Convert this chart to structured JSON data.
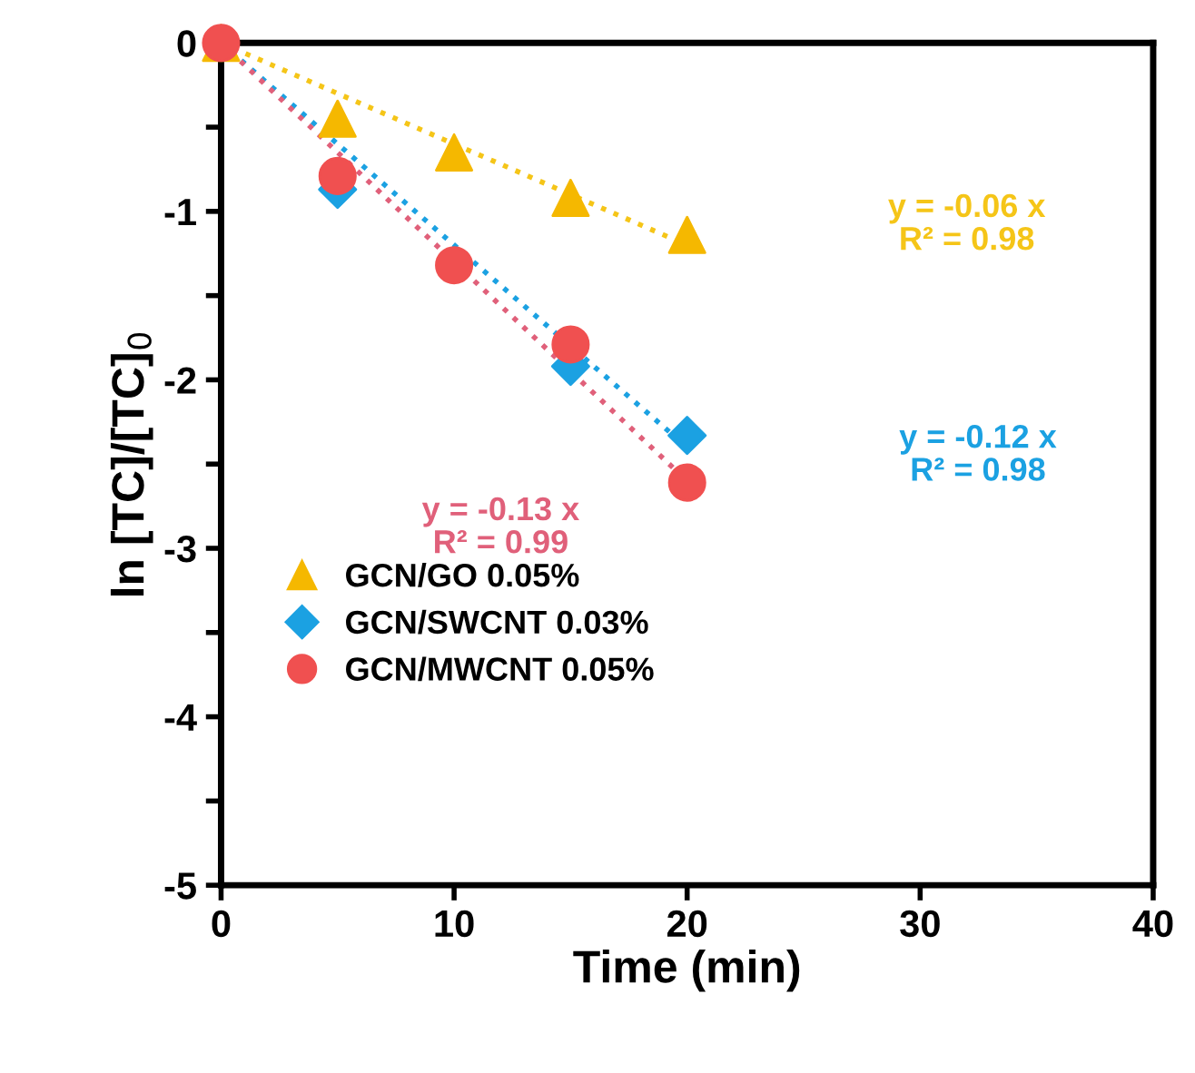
{
  "chart_data": {
    "type": "scatter",
    "xlabel": "Time (min)",
    "ylabel": "ln [TC]/[TC]$_{0}$",
    "xlim": [
      0,
      40
    ],
    "xticks": [
      0,
      10,
      20,
      30,
      40
    ],
    "ylim": [
      -5,
      0
    ],
    "yticks": [
      0,
      {
        "value": -0.5,
        "label": null
      },
      -1,
      {
        "value": -1.5,
        "label": null
      },
      -2,
      {
        "value": -2.5,
        "label": null
      },
      -3,
      {
        "value": -3.5,
        "label": null
      },
      -4,
      {
        "value": -4.5,
        "label": null
      },
      -5
    ],
    "grid": false,
    "legend": "bottom left",
    "series": [
      {
        "name": "GCN/GO 0.05%",
        "color": "#f5b800",
        "marker": "triangle",
        "x": [
          0,
          5,
          10,
          15,
          20
        ],
        "values": [
          0,
          -0.45,
          -0.65,
          -0.92,
          -1.14
        ]
      },
      {
        "name": "GCN/SWCNT 0.03%",
        "color": "#1ba1e2",
        "marker": "diamond",
        "x": [
          5,
          15,
          20
        ],
        "values": [
          -0.87,
          -1.92,
          -2.33
        ]
      },
      {
        "name": "GCN/MWCNT 0.05%",
        "color": "#f05050",
        "marker": "circle",
        "x": [
          0,
          5,
          10,
          15,
          20
        ],
        "values": [
          0,
          -0.79,
          -1.32,
          -1.79,
          -2.61
        ]
      },
      {
        "type": "line",
        "line_style": "dotted",
        "color": "#f5c518",
        "x": [
          0,
          20
        ],
        "values": [
          0,
          -1.2
        ]
      },
      {
        "type": "line",
        "line_style": "dotted",
        "color": "#1ba1e2",
        "x": [
          0,
          20
        ],
        "values": [
          0,
          -2.4
        ]
      },
      {
        "type": "line",
        "line_style": "dotted",
        "color": "#e0607a",
        "x": [
          0,
          20
        ],
        "values": [
          0,
          -2.6
        ]
      }
    ],
    "annotations": [
      "y = -0.06 x\nR² = 0.98",
      "y = -0.12 x\nR² = 0.98",
      "y = -0.13 x\nR² = 0.99"
    ]
  }
}
